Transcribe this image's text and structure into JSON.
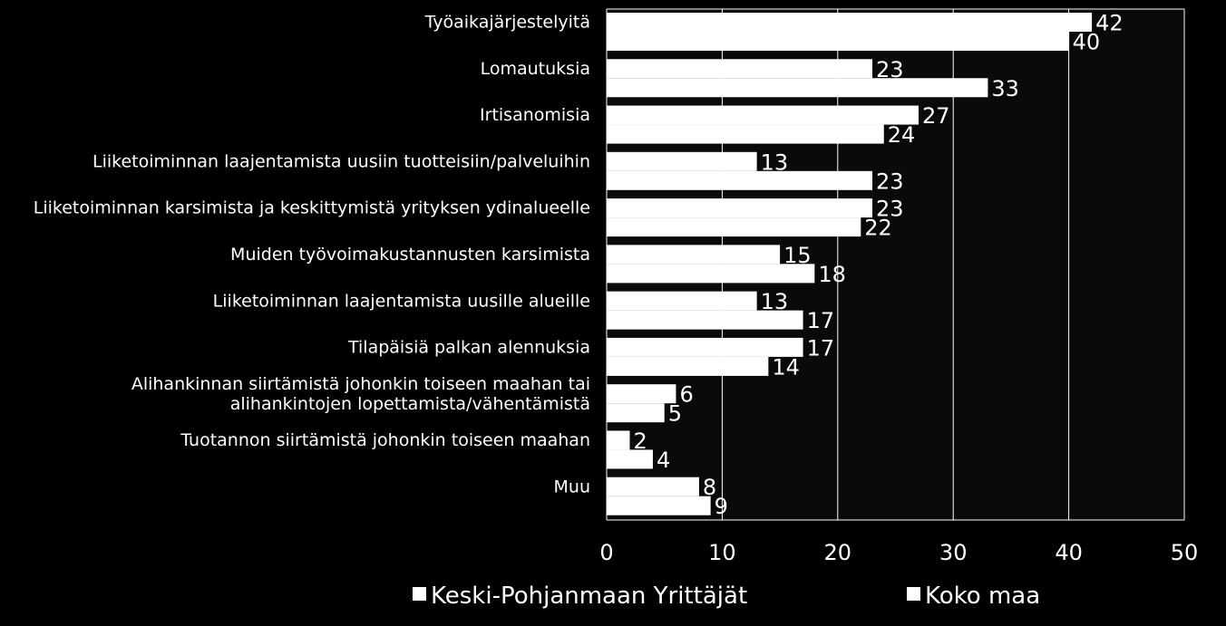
{
  "chart_data": {
    "type": "bar",
    "orientation": "horizontal",
    "categories": [
      [
        "Työaikajärjestelyitä"
      ],
      [
        "Lomautuksia"
      ],
      [
        "Irtisanomisia"
      ],
      [
        "Liiketoiminnan laajentamista uusiin tuotteisiin/palveluihin"
      ],
      [
        "Liiketoiminnan karsimista ja keskittymistä yrityksen ydinalueelle"
      ],
      [
        "Muiden työvoimakustannusten karsimista"
      ],
      [
        "Liiketoiminnan laajentamista uusille alueille"
      ],
      [
        "Tilapäisiä palkan alennuksia"
      ],
      [
        "Alihankinnan siirtämistä johonkin toiseen maahan tai",
        "alihankintojen lopettamista/vähentämistä"
      ],
      [
        "Tuotannon siirtämistä johonkin toiseen maahan"
      ],
      [
        "Muu"
      ]
    ],
    "series": [
      {
        "name": "Keski-Pohjanmaan Yrittäjät",
        "values": [
          42,
          23,
          27,
          13,
          23,
          15,
          13,
          17,
          6,
          2,
          8
        ]
      },
      {
        "name": "Koko maa",
        "values": [
          40,
          33,
          24,
          23,
          22,
          18,
          17,
          14,
          5,
          4,
          9
        ]
      }
    ],
    "xlim": [
      0,
      50
    ],
    "xticks": [
      0,
      10,
      20,
      30,
      40,
      50
    ],
    "grid": true,
    "legend": "bottom",
    "colors": {
      "background": "#000000",
      "bar": "#ffffff",
      "text": "#ffffff",
      "grid": "#ffffff"
    }
  }
}
